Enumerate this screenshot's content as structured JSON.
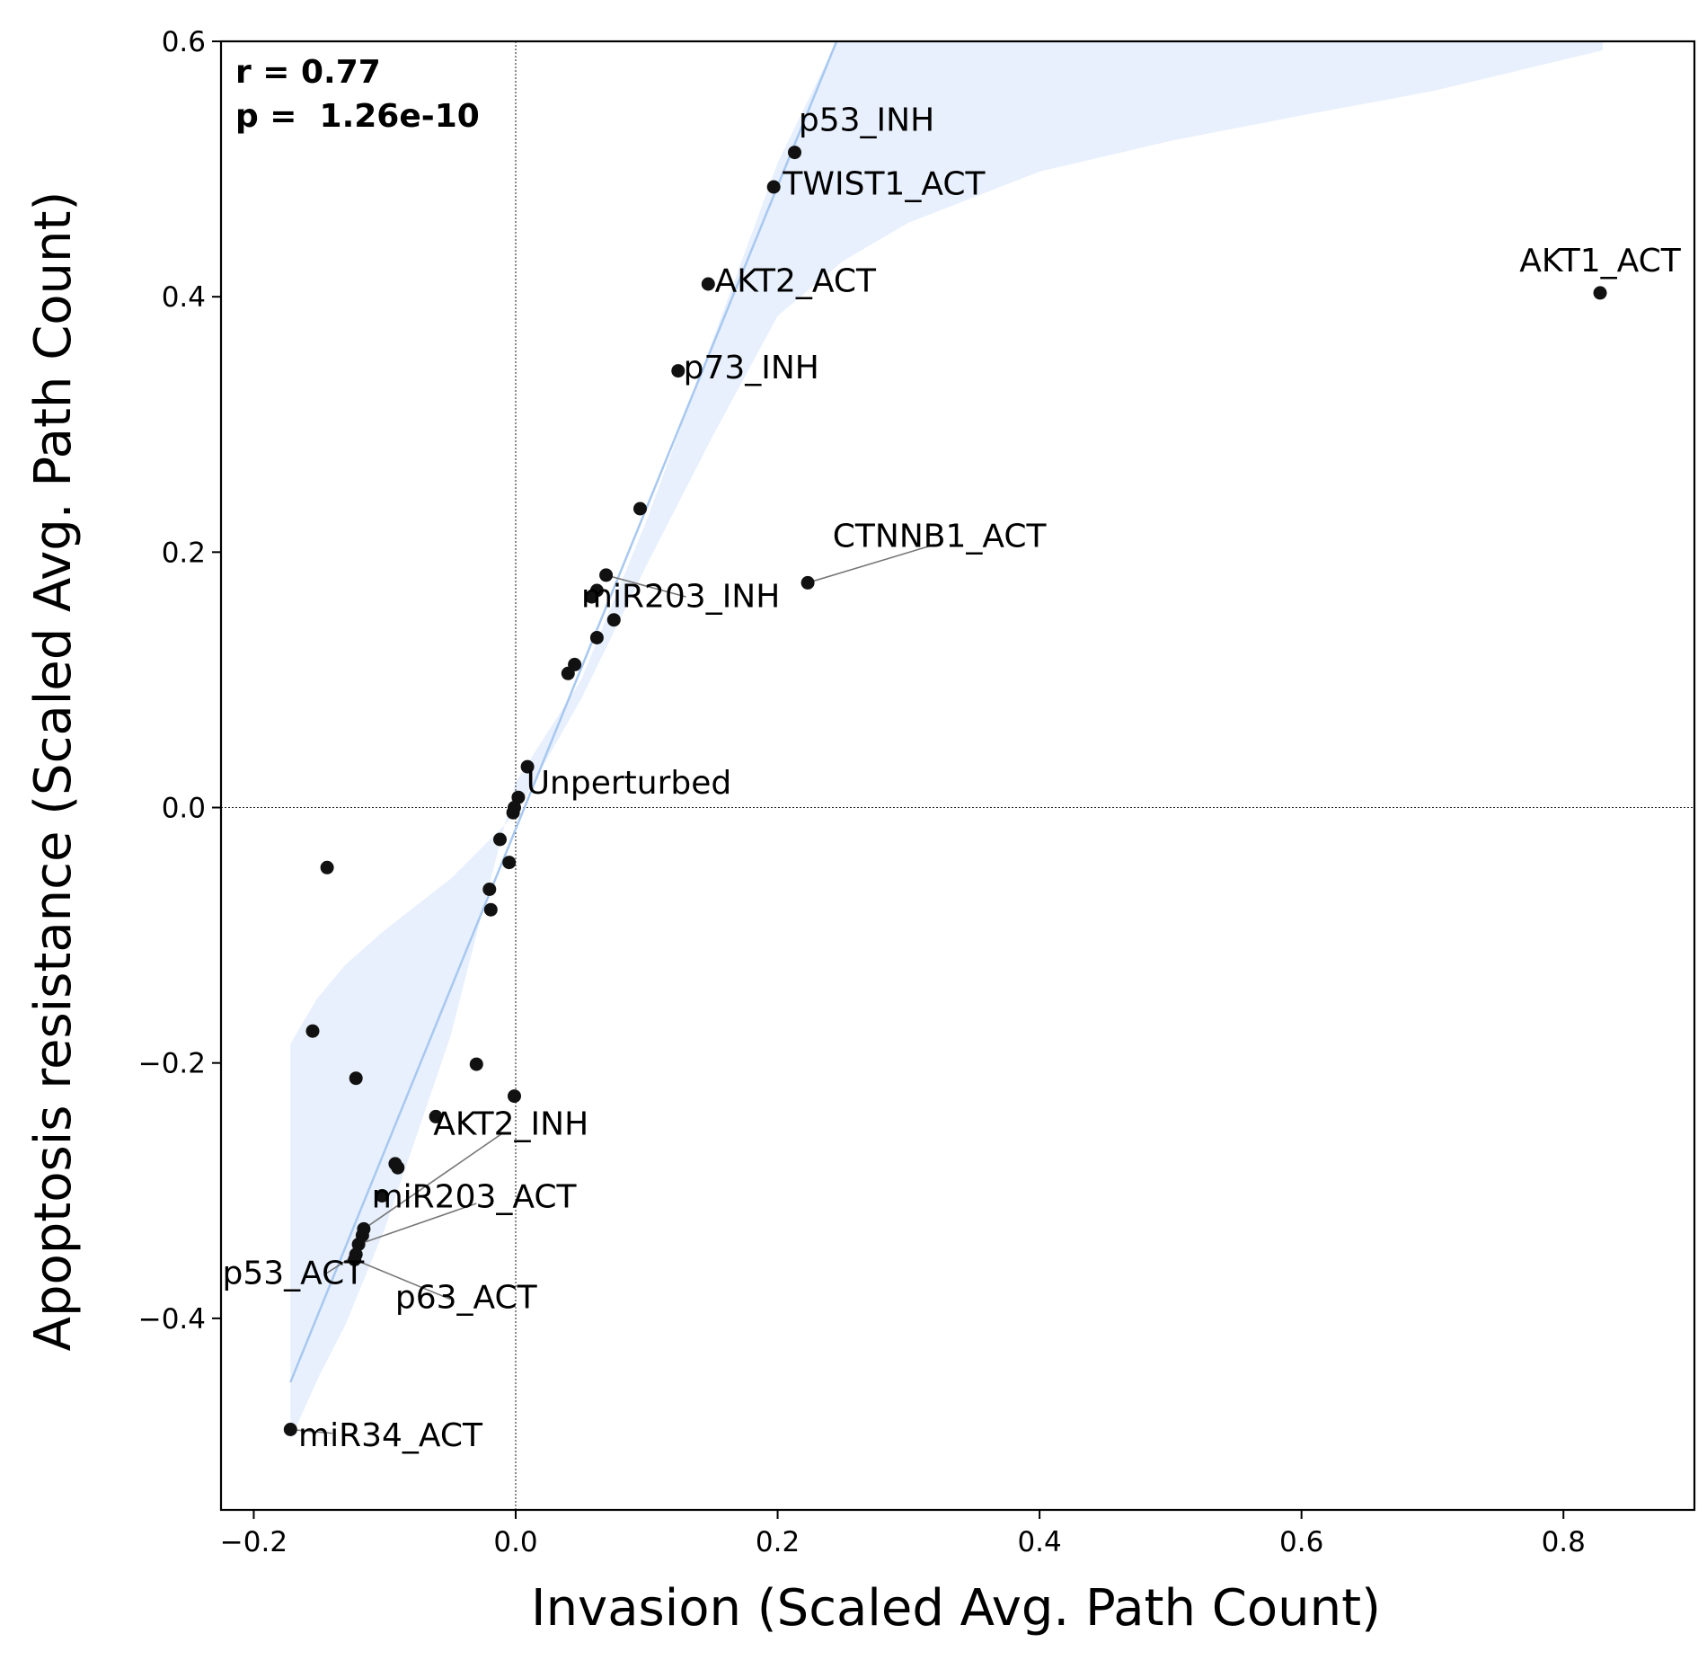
{
  "chart_data": {
    "type": "scatter",
    "xlabel": "Invasion (Scaled Avg. Path Count)",
    "ylabel": "Apoptosis resistance (Scaled Avg. Path Count)",
    "xlim": [
      -0.225,
      0.9
    ],
    "ylim": [
      -0.55,
      0.6
    ],
    "x_ticks": [
      -0.2,
      0.0,
      0.2,
      0.4,
      0.6,
      0.8
    ],
    "y_ticks": [
      -0.4,
      -0.2,
      0.0,
      0.2,
      0.4,
      0.6
    ],
    "x_tick_labels": [
      "−0.2",
      "0.0",
      "0.2",
      "0.4",
      "0.6",
      "0.8"
    ],
    "y_tick_labels": [
      "−0.4",
      "−0.2",
      "0.0",
      "0.2",
      "0.4",
      "0.6"
    ],
    "grid": false,
    "reference_lines": {
      "x": 0,
      "y": 0
    },
    "stats": {
      "r": "r = 0.77",
      "p": "p =  1.26e-10"
    },
    "colors": {
      "points": "#111111",
      "fit_line": "#a8c8f0",
      "ci_band": "#e8f0fd",
      "leader": "#777777"
    },
    "fit_line": {
      "x": [
        -0.172,
        0.245
      ],
      "y": [
        -0.45,
        0.6
      ]
    },
    "confidence_band": [
      [
        -0.172,
        -0.185
      ],
      [
        -0.152,
        -0.15
      ],
      [
        -0.13,
        -0.123
      ],
      [
        -0.1,
        -0.096
      ],
      [
        -0.05,
        -0.056
      ],
      [
        0.0,
        -0.005
      ],
      [
        0.05,
        0.085
      ],
      [
        0.1,
        0.19
      ],
      [
        0.15,
        0.29
      ],
      [
        0.2,
        0.385
      ],
      [
        0.25,
        0.428
      ],
      [
        0.3,
        0.458
      ],
      [
        0.4,
        0.498
      ],
      [
        0.5,
        0.522
      ],
      [
        0.6,
        0.542
      ],
      [
        0.7,
        0.561
      ],
      [
        0.83,
        0.593
      ],
      [
        0.83,
        0.6
      ],
      [
        0.245,
        0.6
      ],
      [
        0.2,
        0.505
      ],
      [
        0.15,
        0.365
      ],
      [
        0.1,
        0.225
      ],
      [
        0.05,
        0.1
      ],
      [
        0.0,
        0.02
      ],
      [
        -0.05,
        -0.18
      ],
      [
        -0.1,
        -0.33
      ],
      [
        -0.13,
        -0.405
      ],
      [
        -0.15,
        -0.445
      ],
      [
        -0.172,
        -0.495
      ]
    ],
    "points": [
      {
        "x": 0.213,
        "y": 0.513,
        "label": "p53_INH"
      },
      {
        "x": 0.197,
        "y": 0.486,
        "label": "TWIST1_ACT"
      },
      {
        "x": 0.147,
        "y": 0.41,
        "label": "AKT2_ACT"
      },
      {
        "x": 0.828,
        "y": 0.403,
        "label": "AKT1_ACT"
      },
      {
        "x": 0.124,
        "y": 0.342,
        "label": "p73_INH"
      },
      {
        "x": 0.095,
        "y": 0.234,
        "label": ""
      },
      {
        "x": 0.223,
        "y": 0.176,
        "label": "CTNNB1_ACT"
      },
      {
        "x": 0.069,
        "y": 0.182,
        "label": "miR203_INH"
      },
      {
        "x": 0.062,
        "y": 0.17,
        "label": ""
      },
      {
        "x": 0.058,
        "y": 0.165,
        "label": ""
      },
      {
        "x": 0.075,
        "y": 0.147,
        "label": ""
      },
      {
        "x": 0.062,
        "y": 0.133,
        "label": ""
      },
      {
        "x": 0.045,
        "y": 0.112,
        "label": ""
      },
      {
        "x": 0.04,
        "y": 0.105,
        "label": ""
      },
      {
        "x": 0.009,
        "y": 0.032,
        "label": ""
      },
      {
        "x": 0.002,
        "y": 0.008,
        "label": "Unperturbed"
      },
      {
        "x": -0.001,
        "y": 0.0,
        "label": ""
      },
      {
        "x": -0.002,
        "y": -0.004,
        "label": ""
      },
      {
        "x": -0.012,
        "y": -0.025,
        "label": ""
      },
      {
        "x": -0.005,
        "y": -0.043,
        "label": ""
      },
      {
        "x": -0.02,
        "y": -0.064,
        "label": ""
      },
      {
        "x": -0.019,
        "y": -0.08,
        "label": ""
      },
      {
        "x": -0.144,
        "y": -0.047,
        "label": ""
      },
      {
        "x": -0.155,
        "y": -0.175,
        "label": ""
      },
      {
        "x": -0.122,
        "y": -0.212,
        "label": ""
      },
      {
        "x": -0.03,
        "y": -0.201,
        "label": ""
      },
      {
        "x": -0.001,
        "y": -0.226,
        "label": ""
      },
      {
        "x": -0.061,
        "y": -0.242,
        "label": "AKT2_INH"
      },
      {
        "x": -0.092,
        "y": -0.279,
        "label": ""
      },
      {
        "x": -0.09,
        "y": -0.282,
        "label": ""
      },
      {
        "x": -0.102,
        "y": -0.304,
        "label": "miR203_ACT"
      },
      {
        "x": -0.116,
        "y": -0.33,
        "label": ""
      },
      {
        "x": -0.117,
        "y": -0.335,
        "label": ""
      },
      {
        "x": -0.12,
        "y": -0.342,
        "label": ""
      },
      {
        "x": -0.122,
        "y": -0.35,
        "label": "p53_ACT"
      },
      {
        "x": -0.123,
        "y": -0.354,
        "label": "p63_ACT"
      },
      {
        "x": -0.172,
        "y": -0.487,
        "label": "miR34_ACT"
      }
    ],
    "annotations": [
      {
        "text": "p53_INH",
        "x": 0.216,
        "y": 0.53,
        "anchor": "start",
        "leader": false
      },
      {
        "text": "TWIST1_ACT",
        "x": 0.204,
        "y": 0.48,
        "anchor": "start",
        "leader": false
      },
      {
        "text": "AKT2_ACT",
        "x": 0.152,
        "y": 0.404,
        "anchor": "start",
        "leader": false
      },
      {
        "text": "AKT1_ACT",
        "x": 0.828,
        "y": 0.42,
        "anchor": "middle",
        "leader": false
      },
      {
        "text": "p73_INH",
        "x": 0.128,
        "y": 0.336,
        "anchor": "start",
        "leader": false
      },
      {
        "text": "CTNNB1_ACT",
        "x": 0.242,
        "y": 0.204,
        "anchor": "start",
        "leader": true,
        "from": [
          0.223,
          0.176
        ],
        "to": [
          0.32,
          0.206
        ]
      },
      {
        "text": "miR203_INH",
        "x": 0.05,
        "y": 0.157,
        "anchor": "start",
        "leader": true,
        "from": [
          0.069,
          0.182
        ],
        "to": [
          0.13,
          0.165
        ]
      },
      {
        "text": "Unperturbed",
        "x": 0.008,
        "y": 0.011,
        "anchor": "start",
        "leader": false
      },
      {
        "text": "AKT2_INH",
        "x": -0.063,
        "y": -0.256,
        "anchor": "start",
        "leader": true,
        "from": [
          -0.116,
          -0.33
        ],
        "to": [
          -0.01,
          -0.255
        ]
      },
      {
        "text": "miR203_ACT",
        "x": -0.11,
        "y": -0.313,
        "anchor": "start",
        "leader": true,
        "from": [
          -0.12,
          -0.342
        ],
        "to": [
          -0.03,
          -0.31
        ]
      },
      {
        "text": "p53_ACT",
        "x": -0.224,
        "y": -0.373,
        "anchor": "start",
        "leader": true,
        "from": [
          -0.122,
          -0.35
        ],
        "to": [
          -0.145,
          -0.365
        ]
      },
      {
        "text": "p63_ACT",
        "x": -0.092,
        "y": -0.392,
        "anchor": "start",
        "leader": true,
        "from": [
          -0.123,
          -0.354
        ],
        "to": [
          -0.05,
          -0.385
        ]
      },
      {
        "text": "miR34_ACT",
        "x": -0.166,
        "y": -0.5,
        "anchor": "start",
        "leader": true,
        "from": [
          -0.172,
          -0.487
        ],
        "to": [
          -0.14,
          -0.49
        ]
      }
    ]
  }
}
